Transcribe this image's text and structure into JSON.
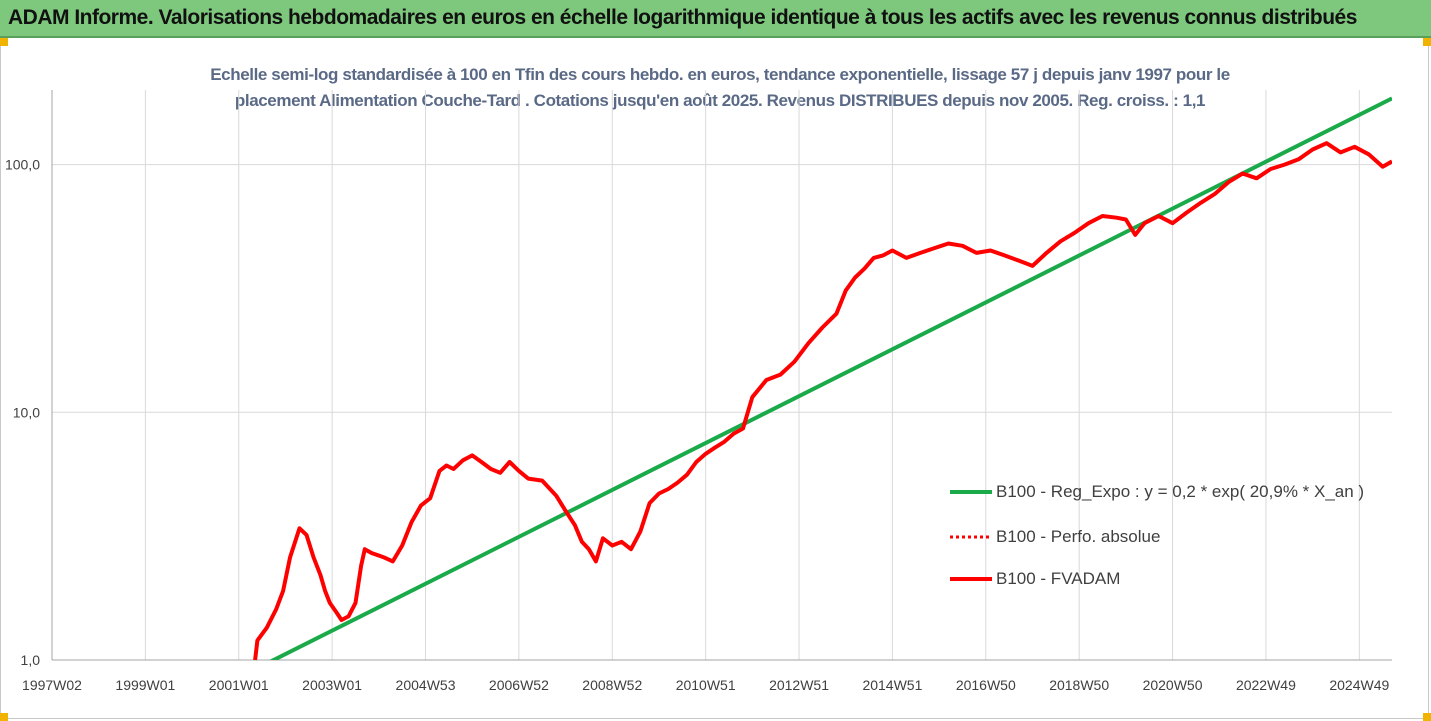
{
  "banner": {
    "title": "ADAM Informe. Valorisations hebdomadaires en euros en échelle logarithmique identique à tous les actifs avec les revenus connus distribués",
    "bg_color": "#7dc87d"
  },
  "chart_data": {
    "type": "line",
    "title": "",
    "subtitle_line1": "Echelle semi-log standardisée à 100 en Tfin des cours hebdo. en euros, tendance exponentielle, lissage 57 j depuis janv 1997 pour le",
    "subtitle_line2": "placement Alimentation Couche-Tard . Cotations jusqu'en août 2025. Revenus DISTRIBUES depuis nov 2005. Reg. croiss. : 1,1",
    "xlabel": "",
    "ylabel": "",
    "y_scale": "log",
    "ylim": [
      1,
      200
    ],
    "xlim": [
      1997.0,
      2025.7
    ],
    "grid": "vertical",
    "legend_position": "right-lower",
    "x_ticks": [
      {
        "label": "1997W02",
        "x": 1997.0
      },
      {
        "label": "1999W01",
        "x": 1999.0
      },
      {
        "label": "2001W01",
        "x": 2001.0
      },
      {
        "label": "2003W01",
        "x": 2003.0
      },
      {
        "label": "2004W53",
        "x": 2005.0
      },
      {
        "label": "2006W52",
        "x": 2007.0
      },
      {
        "label": "2008W52",
        "x": 2009.0
      },
      {
        "label": "2010W51",
        "x": 2011.0
      },
      {
        "label": "2012W51",
        "x": 2013.0
      },
      {
        "label": "2014W51",
        "x": 2015.0
      },
      {
        "label": "2016W50",
        "x": 2017.0
      },
      {
        "label": "2018W50",
        "x": 2019.0
      },
      {
        "label": "2020W50",
        "x": 2021.0
      },
      {
        "label": "2022W49",
        "x": 2023.0
      },
      {
        "label": "2024W49",
        "x": 2025.0
      }
    ],
    "y_ticks": [
      {
        "label": "1,0",
        "y": 1
      },
      {
        "label": "10,0",
        "y": 10
      },
      {
        "label": "100,0",
        "y": 100
      }
    ],
    "series": [
      {
        "name": "B100 - Reg_Expo : y = 0,2 * exp( 20,9% *  X_an )",
        "color": "#1aaa4a",
        "style": "solid",
        "x": [
          2001.0,
          2025.7
        ],
        "y": [
          0.85,
          185
        ]
      },
      {
        "name": "B100 - Perfo. absolue",
        "color": "#ff0000",
        "style": "dotted",
        "x": [],
        "y": []
      },
      {
        "name": "B100 - FVADAM",
        "color": "#ff0000",
        "style": "solid",
        "x": [
          2001.35,
          2001.4,
          2001.6,
          2001.8,
          2001.95,
          2002.1,
          2002.3,
          2002.45,
          2002.6,
          2002.75,
          2002.85,
          2002.95,
          2003.1,
          2003.2,
          2003.35,
          2003.5,
          2003.62,
          2003.7,
          2003.85,
          2004.1,
          2004.3,
          2004.5,
          2004.7,
          2004.9,
          2005.1,
          2005.3,
          2005.45,
          2005.6,
          2005.8,
          2006.0,
          2006.2,
          2006.4,
          2006.6,
          2006.8,
          2007.0,
          2007.2,
          2007.5,
          2007.8,
          2008.0,
          2008.2,
          2008.35,
          2008.5,
          2008.65,
          2008.8,
          2009.0,
          2009.2,
          2009.4,
          2009.6,
          2009.8,
          2010.0,
          2010.2,
          2010.4,
          2010.6,
          2010.8,
          2011.0,
          2011.2,
          2011.4,
          2011.6,
          2011.8,
          2012.0,
          2012.3,
          2012.6,
          2012.9,
          2013.2,
          2013.5,
          2013.8,
          2014.0,
          2014.2,
          2014.4,
          2014.6,
          2014.8,
          2015.0,
          2015.3,
          2015.6,
          2015.9,
          2016.2,
          2016.5,
          2016.8,
          2017.1,
          2017.4,
          2017.7,
          2018.0,
          2018.3,
          2018.6,
          2018.9,
          2019.2,
          2019.5,
          2019.8,
          2020.0,
          2020.2,
          2020.4,
          2020.7,
          2021.0,
          2021.3,
          2021.6,
          2021.9,
          2022.2,
          2022.5,
          2022.8,
          2023.1,
          2023.4,
          2023.7,
          2024.0,
          2024.3,
          2024.6,
          2024.9,
          2025.2,
          2025.5,
          2025.7
        ],
        "y": [
          1.0,
          1.2,
          1.35,
          1.6,
          1.9,
          2.6,
          3.4,
          3.2,
          2.6,
          2.2,
          1.9,
          1.7,
          1.55,
          1.45,
          1.5,
          1.7,
          2.4,
          2.8,
          2.7,
          2.6,
          2.5,
          2.9,
          3.6,
          4.2,
          4.5,
          5.8,
          6.1,
          5.9,
          6.4,
          6.7,
          6.3,
          5.9,
          5.7,
          6.3,
          5.8,
          5.4,
          5.3,
          4.6,
          4.0,
          3.5,
          3.0,
          2.8,
          2.5,
          3.1,
          2.9,
          3.0,
          2.8,
          3.3,
          4.3,
          4.7,
          4.9,
          5.2,
          5.6,
          6.3,
          6.8,
          7.2,
          7.6,
          8.2,
          8.6,
          11.5,
          13.5,
          14.2,
          16.0,
          19.0,
          22.0,
          25.0,
          31.0,
          35.0,
          38.0,
          42.0,
          43.0,
          45.0,
          42.0,
          44.0,
          46.0,
          48.0,
          47.0,
          44.0,
          45.0,
          43.0,
          41.0,
          39.0,
          44.0,
          49.0,
          53.0,
          58.0,
          62.0,
          61.0,
          60.0,
          52.0,
          58.0,
          62.0,
          58.0,
          64.0,
          70.0,
          76.0,
          85.0,
          92.0,
          88.0,
          96.0,
          100.0,
          105.0,
          115.0,
          122.0,
          112.0,
          118.0,
          110.0,
          98.0,
          103.0
        ]
      }
    ]
  }
}
